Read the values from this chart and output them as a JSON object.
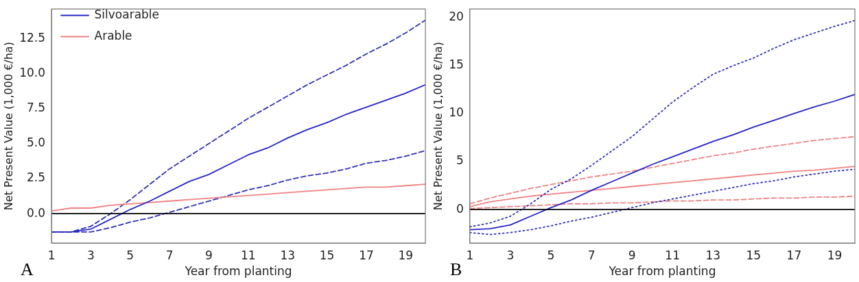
{
  "chart_data": [
    {
      "type": "line",
      "xlabel": "Year from planting",
      "ylabel": "Net Present Value (1,000 €/ha)",
      "annotations": [
        "A"
      ],
      "x": [
        1,
        2,
        3,
        4,
        5,
        6,
        7,
        8,
        9,
        10,
        11,
        12,
        13,
        14,
        15,
        16,
        17,
        18,
        19,
        20
      ],
      "xlim": [
        1,
        20
      ],
      "xticks": [
        1,
        3,
        5,
        7,
        9,
        11,
        13,
        15,
        17,
        19
      ],
      "ylim": [
        -2.1,
        14.6
      ],
      "yticks": [
        {
          "value": 0,
          "label": "0.0"
        },
        {
          "value": 2.5,
          "label": "2.5"
        },
        {
          "value": 5,
          "label": "5.0"
        },
        {
          "value": 7.5,
          "label": "7.5"
        },
        {
          "value": 10,
          "label": "10.0"
        },
        {
          "value": 12.5,
          "label": "12.5"
        }
      ],
      "grid": false,
      "legend": "top left",
      "marker": "none",
      "ref_lines": [
        {
          "axis": "y",
          "value": 0,
          "color": "#000000"
        }
      ],
      "series": [
        {
          "name": "Silvoarable",
          "color": "#2424c8",
          "line_style": "solid",
          "values": [
            -1.3,
            -1.3,
            -1.1,
            -0.4,
            0.3,
            0.9,
            1.6,
            2.3,
            2.8,
            3.5,
            4.2,
            4.7,
            5.4,
            6.0,
            6.5,
            7.1,
            7.6,
            8.1,
            8.6,
            9.2
          ]
        },
        {
          "name": "Arable",
          "color": "#f08080",
          "line_style": "solid",
          "values": [
            0.2,
            0.4,
            0.4,
            0.6,
            0.7,
            0.8,
            0.9,
            1.0,
            1.1,
            1.2,
            1.3,
            1.4,
            1.5,
            1.6,
            1.7,
            1.8,
            1.9,
            1.9,
            2.0,
            2.1
          ]
        },
        {
          "color": "#3030b8",
          "line_style": "dashed",
          "values": [
            -1.3,
            -1.3,
            -0.9,
            0.0,
            1.0,
            2.1,
            3.2,
            4.1,
            5.0,
            5.9,
            6.8,
            7.6,
            8.4,
            9.2,
            9.9,
            10.6,
            11.4,
            12.1,
            12.9,
            13.8
          ]
        },
        {
          "color": "#3030b8",
          "line_style": "dashed",
          "values": [
            -1.3,
            -1.3,
            -1.3,
            -1.0,
            -0.6,
            -0.3,
            0.1,
            0.5,
            0.9,
            1.3,
            1.7,
            2.0,
            2.4,
            2.7,
            2.9,
            3.2,
            3.6,
            3.8,
            4.1,
            4.5
          ]
        }
      ]
    },
    {
      "type": "line",
      "xlabel": "Year from planting",
      "ylabel": "Net Present Value (1,000 €/ha)",
      "annotations": [
        "B"
      ],
      "x": [
        1,
        2,
        3,
        4,
        5,
        6,
        7,
        8,
        9,
        10,
        11,
        12,
        13,
        14,
        15,
        16,
        17,
        18,
        19,
        20
      ],
      "xlim": [
        1,
        20
      ],
      "xticks": [
        1,
        3,
        5,
        7,
        9,
        11,
        13,
        15,
        17,
        19
      ],
      "ylim": [
        -3.5,
        20.9
      ],
      "yticks": [
        0,
        5,
        10,
        15,
        20
      ],
      "grid": false,
      "marker": "none",
      "ref_lines": [
        {
          "axis": "y",
          "value": 0,
          "color": "#000000"
        }
      ],
      "series": [
        {
          "color": "#2424c8",
          "line_style": "solid",
          "values": [
            -2.1,
            -2.0,
            -1.6,
            -0.7,
            0.2,
            1.0,
            2.0,
            2.9,
            3.8,
            4.7,
            5.5,
            6.3,
            7.1,
            7.8,
            8.6,
            9.3,
            10.0,
            10.7,
            11.3,
            12.0
          ]
        },
        {
          "color": "#3030b8",
          "line_style": "dotted",
          "values": [
            -1.8,
            -1.4,
            -0.7,
            0.6,
            2.1,
            3.2,
            4.6,
            6.1,
            7.6,
            9.4,
            11.2,
            12.7,
            14.1,
            15.0,
            15.8,
            16.8,
            17.7,
            18.4,
            19.1,
            19.7
          ]
        },
        {
          "color": "#3030b8",
          "line_style": "dotted",
          "values": [
            -2.4,
            -2.6,
            -2.4,
            -2.1,
            -1.7,
            -1.2,
            -0.8,
            -0.3,
            0.2,
            0.7,
            1.1,
            1.5,
            1.9,
            2.3,
            2.7,
            3.0,
            3.4,
            3.7,
            4.0,
            4.2
          ]
        },
        {
          "color": "#f08080",
          "line_style": "solid",
          "values": [
            0.3,
            0.8,
            1.1,
            1.4,
            1.6,
            1.8,
            2.0,
            2.2,
            2.4,
            2.6,
            2.8,
            3.0,
            3.2,
            3.4,
            3.6,
            3.8,
            4.0,
            4.1,
            4.3,
            4.5
          ]
        },
        {
          "color": "#f08080",
          "line_style": "dashed",
          "values": [
            0.6,
            1.2,
            1.7,
            2.2,
            2.6,
            3.0,
            3.4,
            3.7,
            4.0,
            4.4,
            4.8,
            5.2,
            5.6,
            5.9,
            6.3,
            6.6,
            6.9,
            7.2,
            7.4,
            7.6
          ]
        },
        {
          "color": "#f08080",
          "line_style": "dashed",
          "values": [
            0.1,
            0.2,
            0.3,
            0.4,
            0.5,
            0.6,
            0.6,
            0.7,
            0.7,
            0.8,
            0.9,
            0.9,
            1.0,
            1.0,
            1.1,
            1.2,
            1.2,
            1.3,
            1.3,
            1.4
          ]
        }
      ]
    }
  ]
}
